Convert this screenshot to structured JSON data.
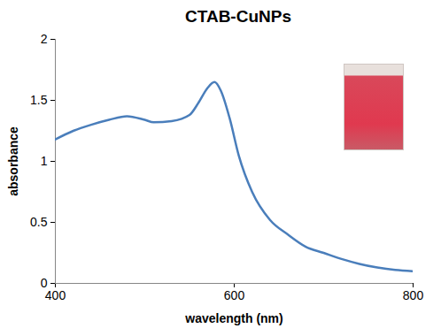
{
  "chart_data": {
    "type": "line",
    "title": "CTAB-CuNPs",
    "xlabel": "wavelength (nm)",
    "ylabel": "absorbance",
    "x": [
      400,
      420,
      440,
      460,
      480,
      500,
      510,
      530,
      550,
      560,
      570,
      578,
      585,
      595,
      605,
      620,
      640,
      660,
      680,
      700,
      720,
      740,
      760,
      780,
      800
    ],
    "values": [
      1.18,
      1.25,
      1.3,
      1.34,
      1.37,
      1.34,
      1.32,
      1.33,
      1.38,
      1.48,
      1.6,
      1.65,
      1.58,
      1.35,
      1.05,
      0.75,
      0.52,
      0.4,
      0.3,
      0.25,
      0.2,
      0.16,
      0.13,
      0.11,
      0.1
    ],
    "color": "#4a7ebb",
    "xlim": [
      400,
      800
    ],
    "ylim": [
      0,
      2
    ],
    "xticks": [
      400,
      600,
      800
    ],
    "yticks": [
      0,
      0.5,
      1,
      1.5,
      2
    ],
    "grid": false
  }
}
